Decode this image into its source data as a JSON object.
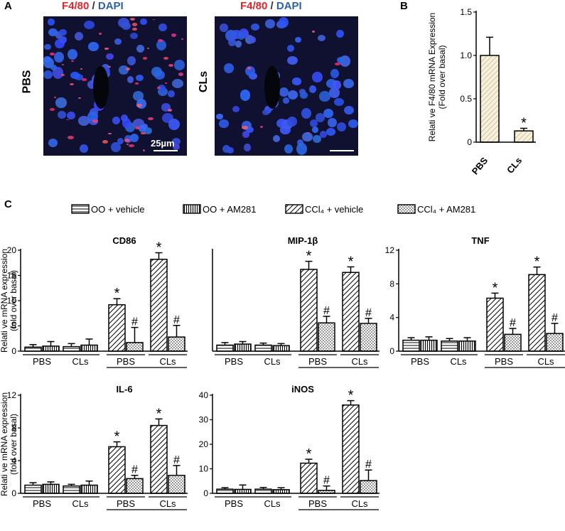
{
  "panel_a": {
    "letter": "A",
    "title_red": "F4/80",
    "title_sep": " / ",
    "title_blue": "DAPI",
    "images": [
      {
        "label": "PBS",
        "scalebar": "25µm"
      },
      {
        "label": "CLs",
        "scalebar": ""
      }
    ]
  },
  "panel_b_letter": "B",
  "panel_c_letter": "C",
  "colors": {
    "red": "#e8232a",
    "blue": "#2d5fae",
    "bar_b": "#f6f0dc",
    "hatch_b": "#b7a874"
  },
  "legend": [
    {
      "label": "OO + vehicle",
      "pattern": "hstripe"
    },
    {
      "label": "OO  + AM281",
      "pattern": "vstripe"
    },
    {
      "label": "CCl₄ + vehicle",
      "pattern": "diag"
    },
    {
      "label": "CCl₄  + AM281",
      "pattern": "dots"
    }
  ],
  "chart_data": [
    {
      "id": "b",
      "type": "bar",
      "categories": [
        "PBS",
        "CLs"
      ],
      "values": [
        1.0,
        0.13
      ],
      "errors": [
        0.21,
        0.03
      ],
      "annotations": [
        "",
        "*"
      ],
      "ylabel_line1": "Relati ve F4/80 mRNA Expression",
      "ylabel_line2": "(Fold over basal)",
      "ylim": [
        0,
        1.5
      ],
      "yticks": [
        0,
        0.5,
        1.0,
        1.5
      ],
      "ytick_labels": [
        "0",
        "0.5",
        "1.0",
        "1.5"
      ]
    },
    {
      "id": "cd86",
      "type": "bar",
      "title": "CD86",
      "group_labels": [
        "PBS",
        "CLs",
        "PBS",
        "CLs"
      ],
      "values": [
        0.8,
        1.0,
        0.9,
        1.2,
        9.2,
        1.7,
        18.2,
        2.8
      ],
      "errors": [
        0.5,
        0.9,
        0.6,
        1.2,
        1.2,
        3.0,
        1.3,
        2.3
      ],
      "annotations": [
        "",
        "",
        "",
        "",
        "*",
        "#",
        "*",
        "#"
      ],
      "ylabel_line1": "Relati ve mRNA expression",
      "ylabel_line2": "(fold over basal)",
      "ylim": [
        0,
        20
      ],
      "yticks": [
        0,
        5,
        10,
        15,
        20
      ],
      "ytick_labels": [
        "0",
        "5",
        "10",
        "15",
        "20"
      ]
    },
    {
      "id": "mip",
      "type": "bar",
      "title": "MIP-1β",
      "group_labels": [
        "PBS",
        "CLs",
        "PBS",
        "CLs"
      ],
      "values": [
        1.2,
        1.4,
        1.2,
        1.1,
        16.2,
        5.6,
        15.6,
        5.5
      ],
      "errors": [
        0.5,
        0.5,
        0.4,
        0.4,
        1.6,
        1.3,
        1.1,
        1.0
      ],
      "annotations": [
        "",
        "",
        "",
        "",
        "*",
        "#",
        "*",
        "#"
      ],
      "ylim": [
        0,
        20
      ],
      "yticks": [],
      "ytick_labels": []
    },
    {
      "id": "tnf",
      "type": "bar",
      "title": "TNF",
      "group_labels": [
        "PBS",
        "CLs",
        "PBS",
        "CLs"
      ],
      "values": [
        1.3,
        1.3,
        1.2,
        1.2,
        6.3,
        2.0,
        9.1,
        2.1
      ],
      "errors": [
        0.3,
        0.4,
        0.3,
        0.4,
        0.6,
        0.7,
        0.9,
        1.2
      ],
      "annotations": [
        "",
        "",
        "",
        "",
        "*",
        "#",
        "*",
        "#"
      ],
      "ylim": [
        0,
        12
      ],
      "yticks": [
        0,
        4,
        8,
        12
      ],
      "ytick_labels": [
        "0",
        "4",
        "8",
        "12"
      ]
    },
    {
      "id": "il6",
      "type": "bar",
      "title": "IL-6",
      "group_labels": [
        "PBS",
        "CLs",
        "PBS",
        "CLs"
      ],
      "values": [
        1.0,
        1.1,
        0.9,
        1.0,
        5.7,
        1.8,
        8.3,
        2.2
      ],
      "errors": [
        0.3,
        0.3,
        0.2,
        0.5,
        0.6,
        0.4,
        0.8,
        1.2
      ],
      "annotations": [
        "",
        "",
        "",
        "",
        "*",
        "#",
        "*",
        "#"
      ],
      "ylabel_line1": "Relati ve mRNA expression",
      "ylabel_line2": "(fold over basal)",
      "ylim": [
        0,
        12
      ],
      "yticks": [
        0,
        4,
        8,
        12
      ],
      "ytick_labels": [
        "0",
        "4",
        "8",
        "12"
      ]
    },
    {
      "id": "inos",
      "type": "bar",
      "title": "iNOS",
      "group_labels": [
        "PBS",
        "CLs",
        "PBS",
        "CLs"
      ],
      "values": [
        1.7,
        1.6,
        1.7,
        1.5,
        12.3,
        1.2,
        36.0,
        5.2
      ],
      "errors": [
        0.6,
        1.8,
        0.7,
        0.8,
        1.6,
        1.8,
        1.8,
        4.3
      ],
      "annotations": [
        "",
        "",
        "",
        "",
        "*",
        "#",
        "*",
        "#"
      ],
      "ylim": [
        0,
        40
      ],
      "yticks": [
        0,
        10,
        20,
        30,
        40
      ],
      "ytick_labels": [
        "0",
        "10",
        "20",
        "30",
        "40"
      ]
    }
  ]
}
